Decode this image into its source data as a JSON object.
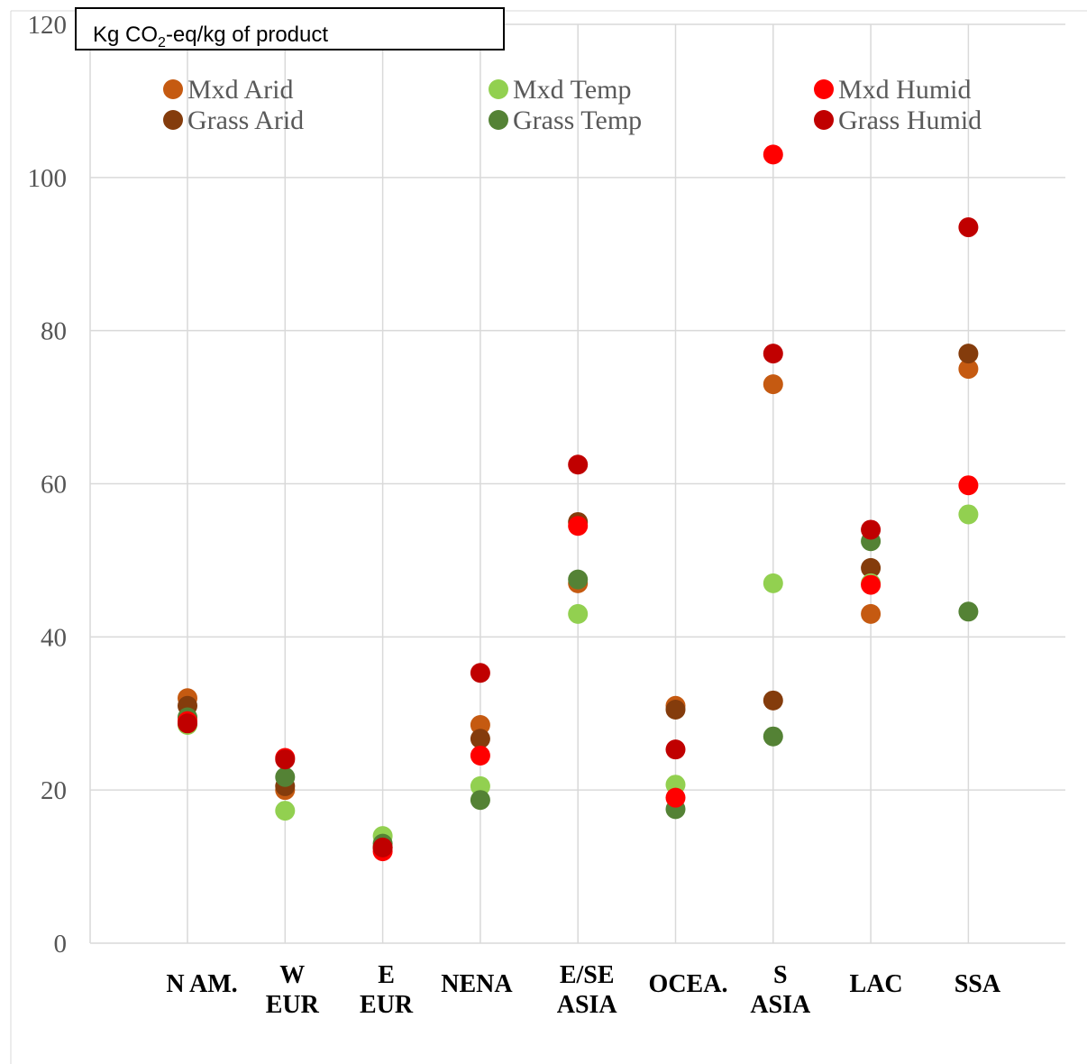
{
  "chart_data": {
    "type": "scatter",
    "title": "",
    "ylabel_box": {
      "prefix": "Kg CO",
      "subscript": "2",
      "suffix": "-eq/kg of product"
    },
    "ylim": [
      0,
      120
    ],
    "yticks": [
      "0",
      "20",
      "40",
      "60",
      "80",
      "100",
      "120"
    ],
    "grid": true,
    "legend_position": "top",
    "categories": [
      [
        "N AM."
      ],
      [
        "W",
        "EUR"
      ],
      [
        "E",
        "EUR"
      ],
      [
        "NENA"
      ],
      [
        "E/SE",
        "ASIA"
      ],
      [
        "OCEA."
      ],
      [
        "S",
        "ASIA"
      ],
      [
        "LAC"
      ],
      [
        "SSA"
      ]
    ],
    "series": [
      {
        "name": "Mxd Arid",
        "color": "#C55A11",
        "values": [
          32,
          20,
          12.5,
          28.5,
          47,
          31,
          73,
          43,
          75
        ]
      },
      {
        "name": "Grass Arid",
        "color": "#843C0C",
        "values": [
          31,
          20.5,
          12.5,
          26.7,
          55,
          30.5,
          31.7,
          49,
          77
        ]
      },
      {
        "name": "Mxd Temp",
        "color": "#92D050",
        "values": [
          28.5,
          17.3,
          14,
          20.5,
          43,
          20.7,
          47,
          47,
          56
        ]
      },
      {
        "name": "Grass Temp",
        "color": "#548235",
        "values": [
          29.5,
          21.7,
          13,
          18.7,
          47.5,
          17.5,
          27,
          52.5,
          43.3
        ]
      },
      {
        "name": "Mxd Humid",
        "color": "#FF0000",
        "values": [
          29,
          24.2,
          12,
          24.5,
          54.5,
          19,
          103,
          46.8,
          59.8
        ]
      },
      {
        "name": "Grass Humid",
        "color": "#C00000",
        "values": [
          28.7,
          24,
          12.5,
          35.3,
          62.5,
          25.3,
          77,
          54,
          93.5
        ]
      }
    ]
  }
}
